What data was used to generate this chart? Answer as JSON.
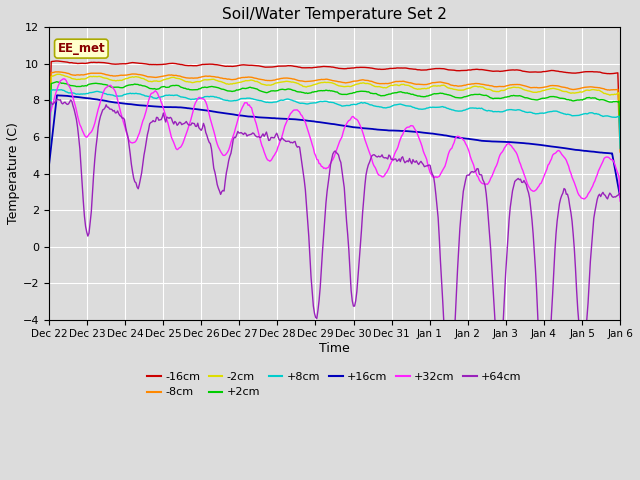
{
  "title": "Soil/Water Temperature Set 2",
  "xlabel": "Time",
  "ylabel": "Temperature (C)",
  "ylim": [
    -4,
    12
  ],
  "yticks": [
    -4,
    -2,
    0,
    2,
    4,
    6,
    8,
    10,
    12
  ],
  "plot_background": "#dcdcdc",
  "annotation_text": "EE_met",
  "annotation_bg": "#ffffcc",
  "annotation_border": "#aaaa00",
  "annotation_text_color": "#880000",
  "series_colors": {
    "-16cm": "#cc0000",
    "-8cm": "#ff8800",
    "-2cm": "#dddd00",
    "+2cm": "#00cc00",
    "+8cm": "#00cccc",
    "+16cm": "#0000bb",
    "+32cm": "#ff22ff",
    "+64cm": "#9922bb"
  },
  "x_tick_labels": [
    "Dec 22",
    "Dec 23",
    "Dec 24",
    "Dec 25",
    "Dec 26",
    "Dec 27",
    "Dec 28",
    "Dec 29",
    "Dec 30",
    "Dec 31",
    "Jan 1",
    "Jan 2",
    "Jan 3",
    "Jan 4",
    "Jan 5",
    "Jan 6"
  ],
  "num_points": 500
}
